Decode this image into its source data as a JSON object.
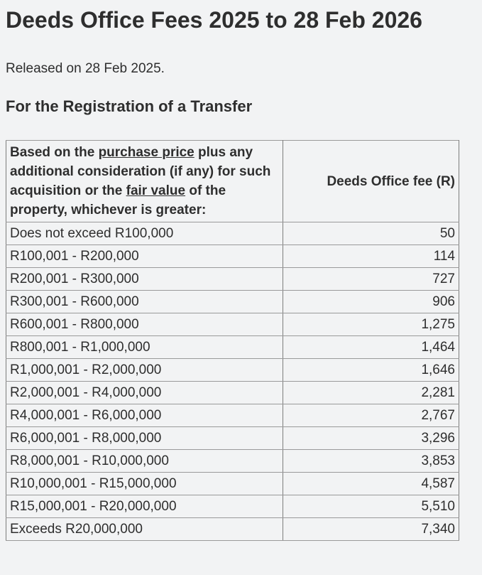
{
  "page": {
    "title": "Deeds Office Fees 2025 to 28 Feb 2026",
    "released": "Released on 28 Feb 2025.",
    "section_heading": "For the Registration of a Transfer"
  },
  "table": {
    "header": {
      "col1_part1": "Based on the ",
      "col1_underline1": "purchase price",
      "col1_part2": " plus any additional consideration (if any) for such acquisition or the ",
      "col1_underline2": "fair value",
      "col1_part3": " of the property, whichever is greater:",
      "col2": "Deeds Office fee (R)"
    },
    "rows": [
      {
        "range": "Does not exceed R100,000",
        "fee": "50"
      },
      {
        "range": "R100,001 - R200,000",
        "fee": "114"
      },
      {
        "range": "R200,001 - R300,000",
        "fee": "727"
      },
      {
        "range": "R300,001 - R600,000",
        "fee": "906"
      },
      {
        "range": "R600,001 - R800,000",
        "fee": "1,275"
      },
      {
        "range": "R800,001 - R1,000,000",
        "fee": "1,464"
      },
      {
        "range": "R1,000,001 - R2,000,000",
        "fee": "1,646"
      },
      {
        "range": "R2,000,001 - R4,000,000",
        "fee": "2,281"
      },
      {
        "range": "R4,000,001 - R6,000,000",
        "fee": "2,767"
      },
      {
        "range": "R6,000,001 - R8,000,000",
        "fee": "3,296"
      },
      {
        "range": "R8,000,001 - R10,000,000",
        "fee": "3,853"
      },
      {
        "range": "R10,000,001 - R15,000,000",
        "fee": "4,587"
      },
      {
        "range": "R15,000,001 - R20,000,000",
        "fee": "5,510"
      },
      {
        "range": "Exceeds R20,000,000",
        "fee": "7,340"
      }
    ]
  },
  "colors": {
    "text": "#2e2e2e",
    "border-strong": "#7d7d7d",
    "border-light": "#9a9a9a",
    "background": "#f2f3f4"
  }
}
